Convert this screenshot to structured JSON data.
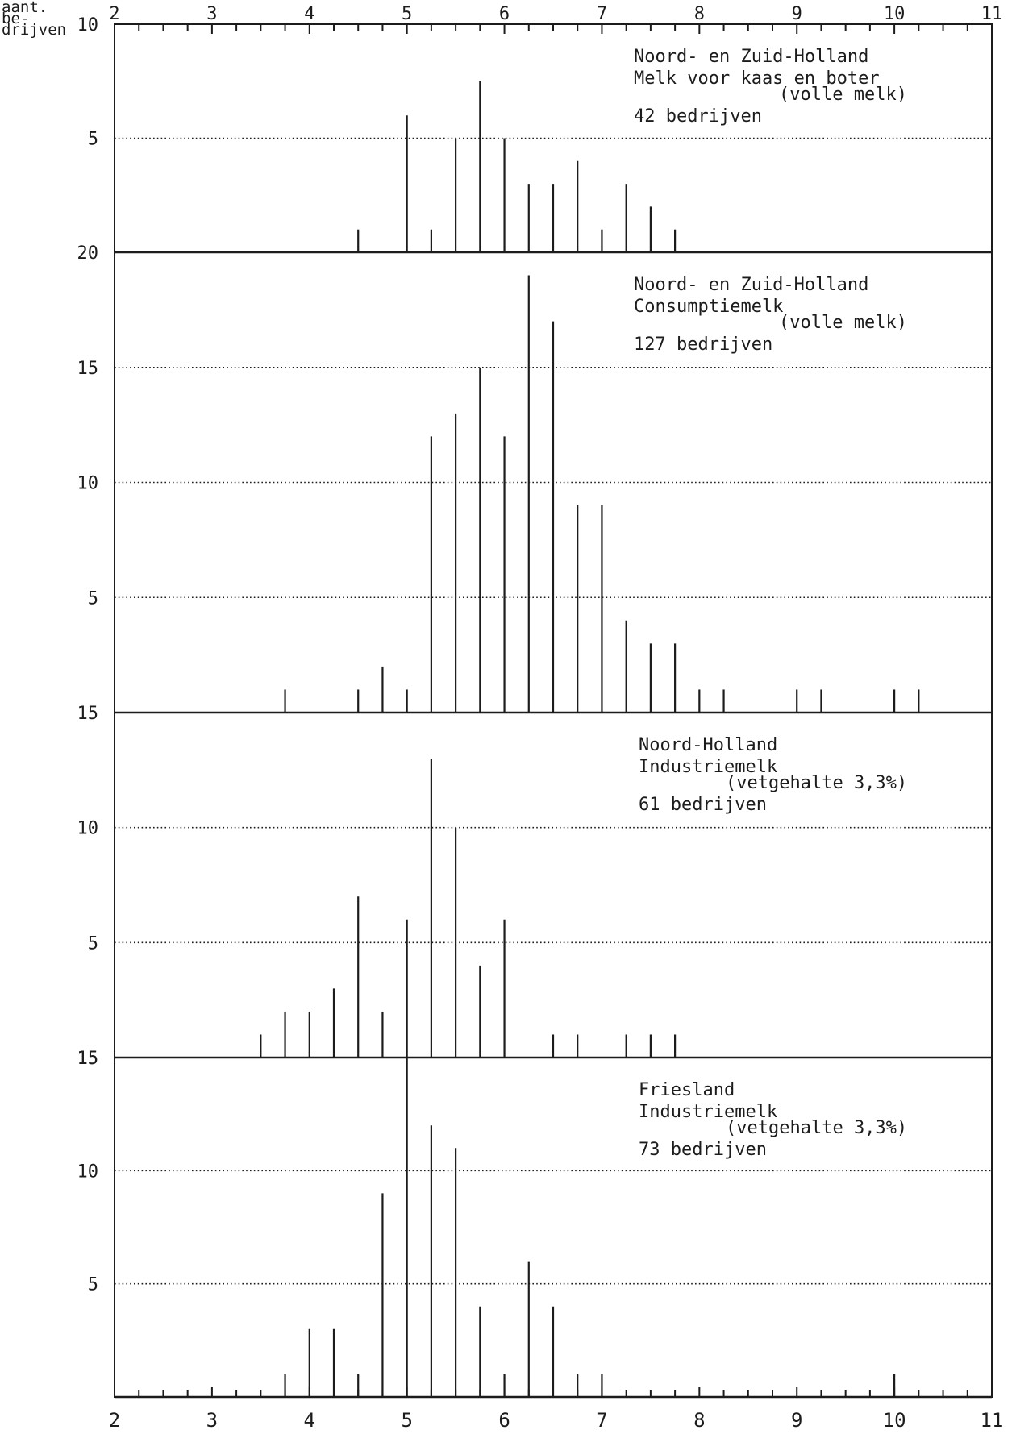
{
  "y_axis_title": [
    "aant.",
    "be-",
    "drijven"
  ],
  "chart_data": [
    {
      "type": "bar",
      "title_lines": [
        "Noord- en Zuid-Holland",
        "Melk voor kaas en boter",
        "(volle melk)",
        "42 bedrijven"
      ],
      "x_ticklabels": [
        "2",
        "3",
        "4",
        "5",
        "6",
        "7",
        "8",
        "9",
        "10",
        "11"
      ],
      "xlim": [
        2,
        11
      ],
      "ylim": [
        0,
        10
      ],
      "ytick_labels": [
        {
          "value": 0,
          "label": "20"
        },
        {
          "value": 5,
          "label": "5"
        },
        {
          "value": 10,
          "label": "10"
        }
      ],
      "grid_values": [
        5
      ],
      "x": [
        4.5,
        5.0,
        5.25,
        5.5,
        5.75,
        6.0,
        6.25,
        6.5,
        6.75,
        7.0,
        7.25,
        7.5,
        7.75
      ],
      "values": [
        1,
        6,
        1,
        5,
        7.5,
        5,
        3,
        3,
        4,
        1,
        3,
        2,
        1
      ]
    },
    {
      "type": "bar",
      "title_lines": [
        "Noord- en Zuid-Holland",
        "Consumptiemelk",
        "(volle melk)",
        "127 bedrijven"
      ],
      "x_ticklabels": [],
      "xlim": [
        2,
        11
      ],
      "ylim": [
        0,
        20
      ],
      "ytick_labels": [
        {
          "value": 0,
          "label": "15"
        },
        {
          "value": 5,
          "label": "5"
        },
        {
          "value": 10,
          "label": "10"
        },
        {
          "value": 15,
          "label": "15"
        }
      ],
      "grid_values": [
        5,
        10,
        15
      ],
      "x": [
        3.75,
        4.5,
        4.75,
        5.0,
        5.25,
        5.5,
        5.75,
        6.0,
        6.25,
        6.5,
        6.75,
        7.0,
        7.25,
        7.5,
        7.75,
        8.0,
        8.25,
        9.0,
        9.25,
        10.0,
        10.25
      ],
      "values": [
        1,
        1,
        2,
        1,
        12,
        13,
        15,
        12,
        19,
        17,
        9,
        9,
        4,
        3,
        3,
        1,
        1,
        1,
        1,
        1,
        1
      ]
    },
    {
      "type": "bar",
      "title_lines": [
        "Noord-Holland",
        "Industriemelk",
        "(vetgehalte 3,3%)",
        "61 bedrijven"
      ],
      "x_ticklabels": [],
      "xlim": [
        2,
        11
      ],
      "ylim": [
        0,
        15
      ],
      "ytick_labels": [
        {
          "value": 0,
          "label": "15"
        },
        {
          "value": 5,
          "label": "5"
        },
        {
          "value": 10,
          "label": "10"
        }
      ],
      "grid_values": [
        5,
        10
      ],
      "x": [
        3.5,
        3.75,
        4.0,
        4.25,
        4.5,
        4.75,
        5.0,
        5.25,
        5.5,
        5.75,
        6.0,
        6.5,
        6.75,
        7.25,
        7.5,
        7.75
      ],
      "values": [
        1,
        2,
        2,
        3,
        7,
        2,
        6,
        13,
        10,
        4,
        6,
        1,
        1,
        1,
        1,
        1
      ]
    },
    {
      "type": "bar",
      "title_lines": [
        "Friesland",
        "Industriemelk",
        "(vetgehalte 3,3%)",
        "73 bedrijven"
      ],
      "x_ticklabels": [
        "2",
        "3",
        "4",
        "5",
        "6",
        "7",
        "8",
        "9",
        "10",
        "11"
      ],
      "xlim": [
        2,
        11
      ],
      "ylim": [
        0,
        15
      ],
      "ytick_labels": [
        {
          "value": 5,
          "label": "5"
        },
        {
          "value": 10,
          "label": "10"
        },
        {
          "value": 15,
          "label": "15"
        }
      ],
      "grid_values": [
        5,
        10
      ],
      "x": [
        3.75,
        4.0,
        4.25,
        4.5,
        4.75,
        5.0,
        5.25,
        5.5,
        5.75,
        6.0,
        6.25,
        6.5,
        6.75,
        7.0,
        10.0
      ],
      "values": [
        1,
        3,
        3,
        1,
        9,
        15,
        12,
        11,
        4,
        1,
        6,
        4,
        1,
        1,
        1
      ]
    }
  ]
}
